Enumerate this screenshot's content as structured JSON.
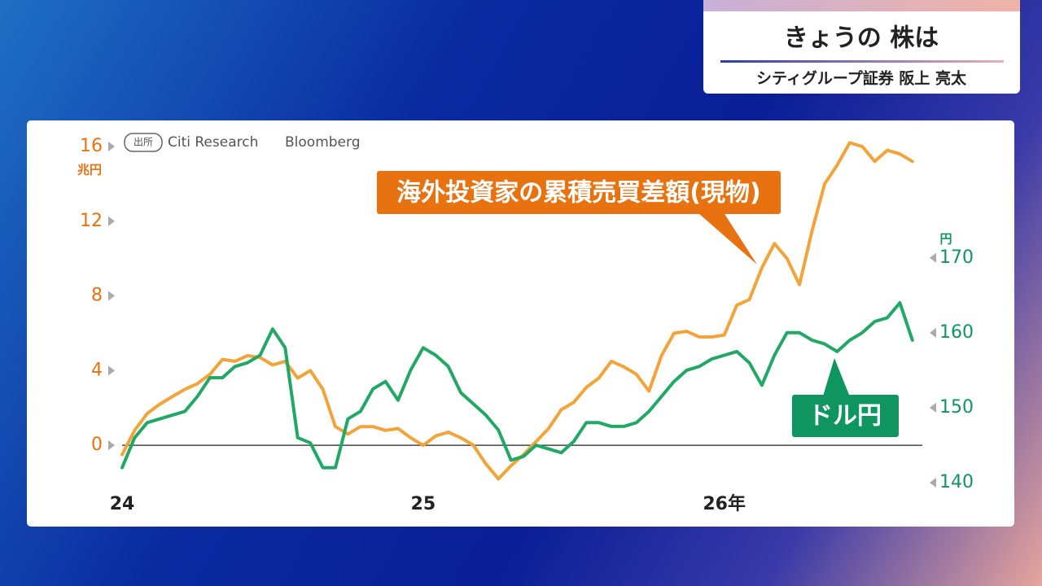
{
  "header": {
    "title": "きょうの 株は",
    "subtitle": "シティグループ証券 阪上 亮太"
  },
  "chart_data": {
    "type": "line",
    "source_label": "出所",
    "sources": [
      "Citi Research",
      "Bloomberg"
    ],
    "y_unit": "兆円",
    "y2_unit": "円",
    "x": [
      0,
      0.5,
      1,
      1.5,
      2,
      2.5,
      3,
      3.5,
      4,
      4.5,
      5,
      5.5,
      6,
      6.5,
      7,
      7.5,
      8,
      8.5,
      9,
      9.5,
      10,
      10.5,
      11,
      11.5,
      12,
      12.5,
      13,
      13.5,
      14,
      14.5,
      15,
      15.5,
      16,
      16.5,
      17,
      17.5,
      18,
      18.5,
      19,
      19.5,
      20,
      20.5,
      21,
      21.5,
      22,
      22.5,
      23,
      23.5,
      24,
      24.5,
      25,
      25.5,
      26,
      26.5,
      27,
      27.5,
      28,
      28.5,
      29,
      29.5,
      30,
      30.5,
      31,
      31.5
    ],
    "xlim": [
      0,
      31.7
    ],
    "xticks": [
      {
        "value": 0,
        "label": "24"
      },
      {
        "value": 12,
        "label": "25"
      },
      {
        "value": 24,
        "label": "26年"
      }
    ],
    "ylim": [
      -2,
      16.5
    ],
    "yticks": [
      0,
      4,
      8,
      12,
      16
    ],
    "y2lim": [
      140,
      186.1
    ],
    "y2ticks": [
      140,
      150,
      160,
      170
    ],
    "series": [
      {
        "name": "海外投資家の累積売買差額(現物)",
        "color": "#f2a43a",
        "label_color": "#e8720f",
        "values": [
          -0.5,
          0.8,
          1.7,
          2.2,
          2.6,
          3.0,
          3.3,
          3.8,
          4.6,
          4.5,
          4.8,
          4.7,
          4.3,
          4.5,
          3.6,
          4.0,
          3.0,
          1.0,
          0.6,
          1.0,
          1.0,
          0.8,
          0.9,
          0.4,
          0.0,
          0.5,
          0.7,
          0.4,
          0.0,
          -1.0,
          -1.8,
          -1.1,
          -0.5,
          0.2,
          0.9,
          1.9,
          2.3,
          3.1,
          3.6,
          4.5,
          4.2,
          3.8,
          2.9,
          4.8,
          6.0,
          6.1,
          5.8,
          5.8,
          5.9,
          7.5,
          7.8,
          9.5,
          10.8,
          10.0,
          8.6,
          11.5,
          14.0,
          15.0,
          16.2,
          16.0,
          15.2,
          15.8,
          15.6,
          15.2
        ]
      },
      {
        "name": "ドル円",
        "color": "#22a865",
        "label_color": "#0e9560",
        "axis": "y2",
        "values": [
          142,
          146,
          148,
          148.5,
          149,
          149.5,
          151.5,
          154,
          154,
          155.5,
          156,
          157,
          160.5,
          158,
          146,
          145.3,
          142,
          142,
          148.5,
          149.5,
          152.5,
          153.5,
          151,
          155,
          158,
          157,
          155.5,
          152,
          150.5,
          149,
          147,
          143,
          143.5,
          145,
          144.5,
          144,
          145.5,
          148,
          148,
          147.5,
          147.5,
          148,
          149.5,
          151.5,
          153.5,
          155,
          155.5,
          156.5,
          157,
          157.5,
          156,
          153,
          157,
          160,
          160,
          159,
          158.5,
          157.5,
          159,
          160,
          161.5,
          162,
          164,
          159
        ]
      }
    ]
  }
}
